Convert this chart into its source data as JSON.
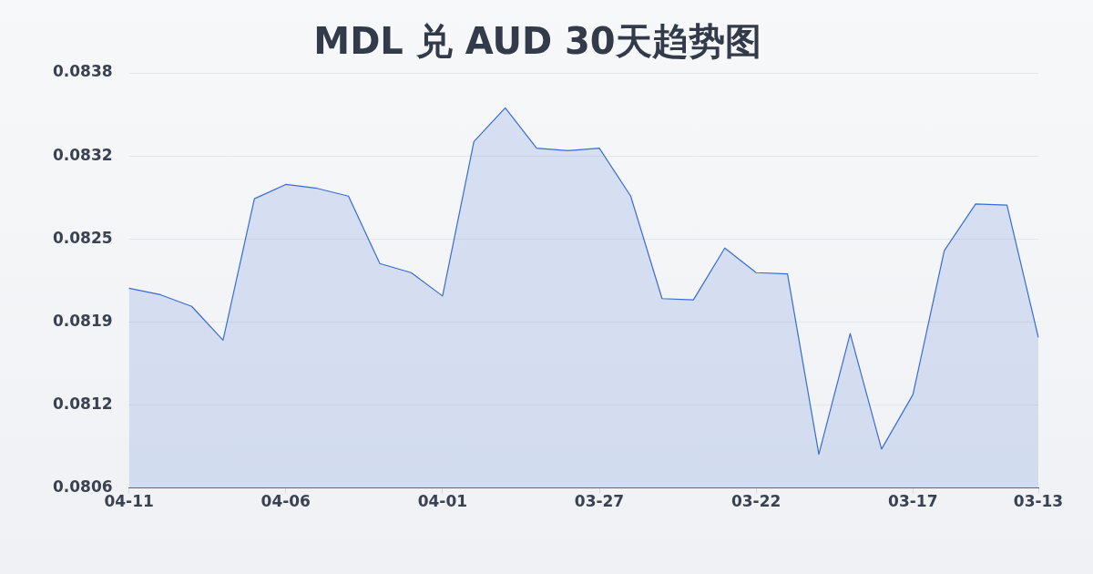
{
  "chart_data": {
    "type": "area",
    "title": "MDL 兑 AUD 30天趋势图",
    "categories": [
      "04-11",
      null,
      null,
      null,
      null,
      "04-06",
      null,
      null,
      null,
      null,
      "04-01",
      null,
      null,
      null,
      null,
      "03-27",
      null,
      null,
      null,
      null,
      "03-22",
      null,
      null,
      null,
      null,
      "03-17",
      null,
      null,
      null,
      "03-13"
    ],
    "values": [
      0.08214,
      0.08209,
      0.082,
      0.08174,
      0.08283,
      0.08294,
      0.08291,
      0.08285,
      0.08233,
      0.08226,
      0.08208,
      0.08327,
      0.08353,
      0.08322,
      0.0832,
      0.08322,
      0.08285,
      0.08206,
      0.08205,
      0.08245,
      0.08226,
      0.08225,
      0.08086,
      0.08179,
      0.0809,
      0.08132,
      0.08243,
      0.08279,
      0.08278,
      0.08176
    ],
    "color": "#3a6bd4",
    "ylim": [
      0.0806,
      0.0838
    ],
    "yticks": [
      0.0806,
      {
        "value": 0.08124,
        "label": "0.0812"
      },
      {
        "value": 0.08188,
        "label": "0.0819"
      },
      {
        "value": 0.08252,
        "label": "0.0825"
      },
      {
        "value": 0.08316,
        "label": "0.0832"
      },
      0.0838
    ],
    "grid": "y",
    "marker": "none"
  }
}
